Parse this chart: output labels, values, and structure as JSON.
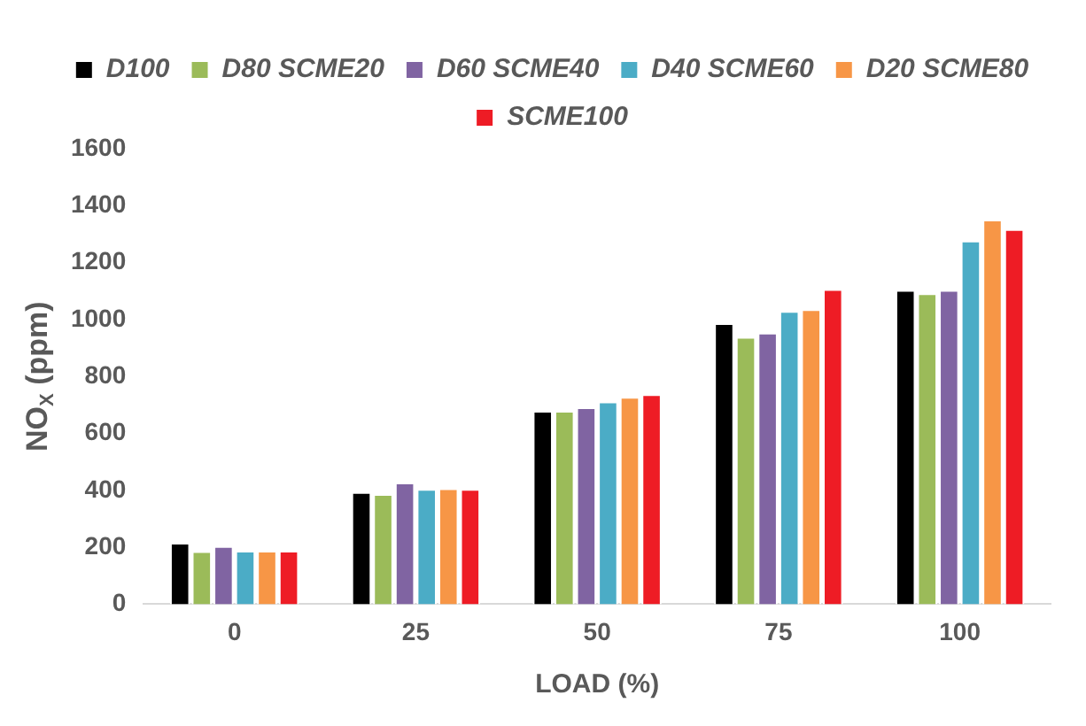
{
  "chart_data": {
    "type": "bar",
    "xlabel": "LOAD (%)",
    "ylabel": "NO$_{X}$ (ppm)",
    "categories": [
      "0",
      "25",
      "50",
      "75",
      "100"
    ],
    "series": [
      {
        "name": "D100",
        "color": "#000000",
        "values": [
          216,
          394,
          679,
          987,
          1104
        ]
      },
      {
        "name": "D80 SCME20",
        "color": "#9bbb59",
        "values": [
          186,
          387,
          679,
          939,
          1092
        ]
      },
      {
        "name": "D60 SCME40",
        "color": "#8064a2",
        "values": [
          204,
          427,
          692,
          954,
          1104
        ]
      },
      {
        "name": "D40 SCME60",
        "color": "#4bacc6",
        "values": [
          188,
          405,
          712,
          1030,
          1277
        ]
      },
      {
        "name": "D20 SCME80",
        "color": "#f79646",
        "values": [
          188,
          407,
          728,
          1036,
          1351
        ]
      },
      {
        "name": "SCME100",
        "color": "#ee1c25",
        "values": [
          188,
          405,
          738,
          1107,
          1318
        ]
      }
    ],
    "ylim": [
      0,
      1600
    ],
    "yticks": [
      0,
      200,
      400,
      600,
      800,
      1000,
      1200,
      1400,
      1600
    ],
    "grid": false,
    "legend": "top"
  }
}
